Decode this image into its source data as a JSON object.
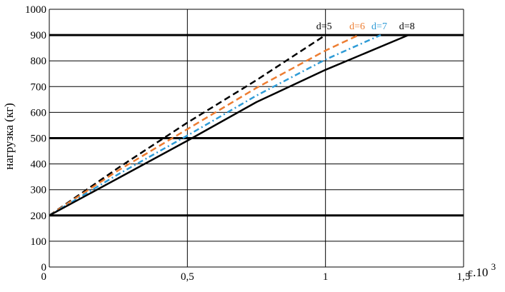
{
  "chart_data": {
    "type": "line",
    "title": "",
    "xlabel": "ε.10³",
    "xlabel_base": "ε.10",
    "xlabel_exp": "3",
    "ylabel": "нагрузка (кг)",
    "xlim": [
      0,
      1.5
    ],
    "ylim": [
      0,
      1000
    ],
    "x_ticks": [
      {
        "value": 0,
        "label": "0"
      },
      {
        "value": 0.5,
        "label": "0,5"
      },
      {
        "value": 1,
        "label": "1"
      },
      {
        "value": 1.5,
        "label": "1,5"
      }
    ],
    "y_ticks": [
      0,
      100,
      200,
      300,
      400,
      500,
      600,
      700,
      800,
      900,
      1000
    ],
    "y_tick_labels": [
      "0",
      "100",
      "200",
      "300",
      "400",
      "500",
      "600",
      "700",
      "800",
      "900",
      "1000"
    ],
    "bold_gridlines_y": [
      200,
      500,
      900
    ],
    "grid": true,
    "series": [
      {
        "name": "d=5",
        "color": "#000000",
        "dash": "dashed",
        "x": [
          0,
          0.25,
          0.5,
          0.75,
          1.0
        ],
        "y": [
          200,
          385,
          560,
          725,
          900
        ]
      },
      {
        "name": "d=6",
        "color": "#ed7d31",
        "dash": "dashed",
        "x": [
          0,
          0.25,
          0.5,
          0.75,
          1.0,
          1.12
        ],
        "y": [
          200,
          375,
          535,
          695,
          840,
          900
        ]
      },
      {
        "name": "d=7",
        "color": "#2e9bd6",
        "dash": "dashdot",
        "x": [
          0,
          0.25,
          0.5,
          0.75,
          1.0,
          1.2
        ],
        "y": [
          200,
          360,
          510,
          665,
          805,
          900
        ]
      },
      {
        "name": "d=8",
        "color": "#000000",
        "dash": "solid",
        "x": [
          0,
          0.25,
          0.5,
          0.75,
          1.0,
          1.3
        ],
        "y": [
          200,
          345,
          490,
          640,
          765,
          900
        ]
      }
    ]
  }
}
